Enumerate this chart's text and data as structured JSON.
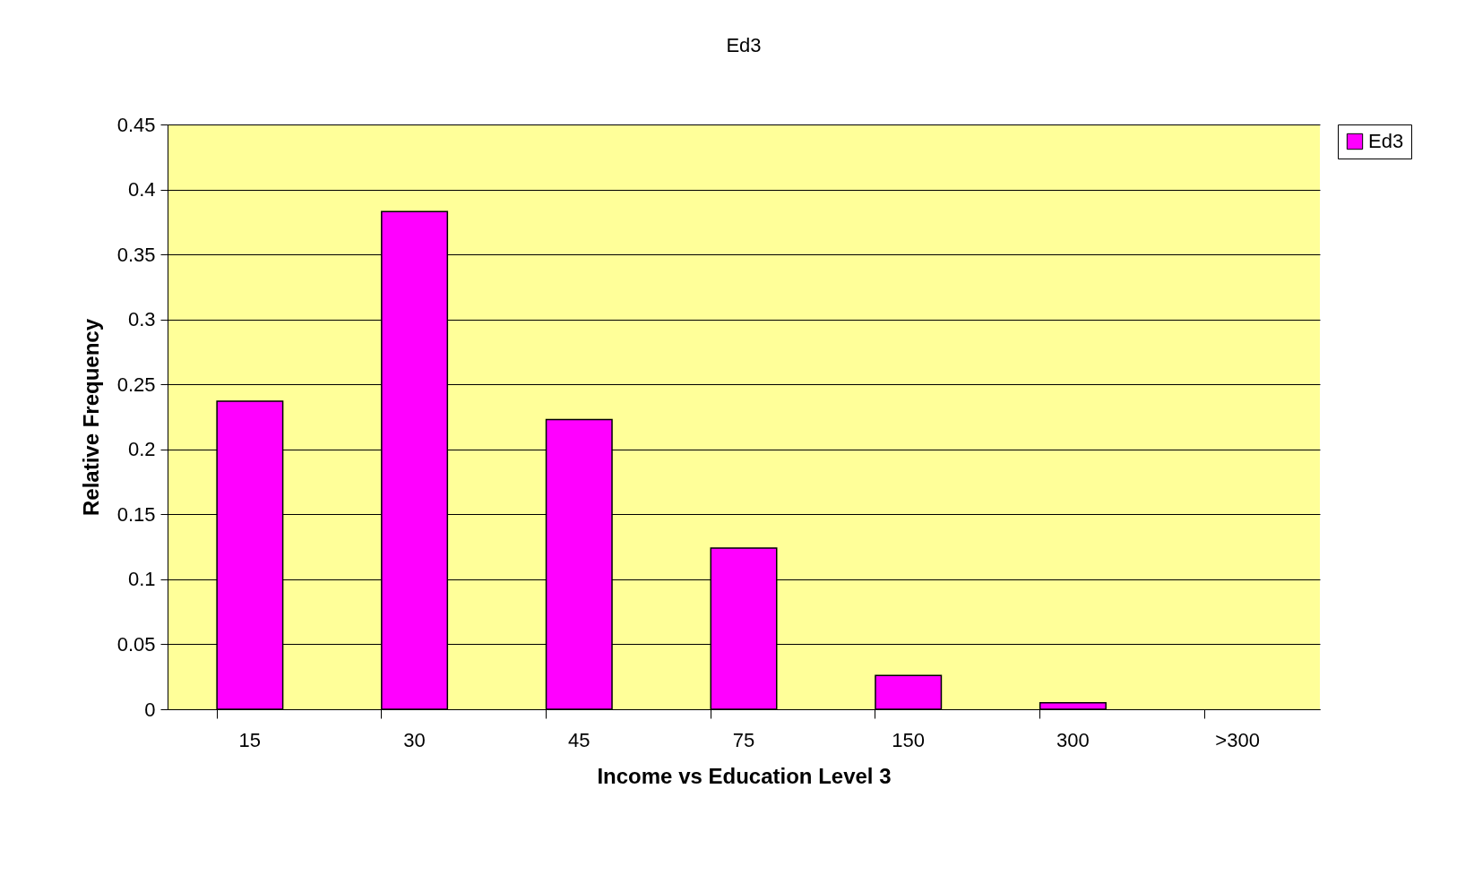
{
  "chart_data": {
    "type": "bar",
    "title": "Ed3",
    "xlabel": "Income vs Education Level 3",
    "ylabel": "Relative Frequency",
    "categories": [
      "15",
      "30",
      "45",
      "75",
      "150",
      "300",
      ">300"
    ],
    "series": [
      {
        "name": "Ed3",
        "color": "#ff00ff",
        "values": [
          0.237,
          0.383,
          0.223,
          0.124,
          0.026,
          0.005,
          0
        ]
      }
    ],
    "ylim": [
      0,
      0.45
    ],
    "yticks": [
      0,
      0.05,
      0.1,
      0.15,
      0.2,
      0.25,
      0.3,
      0.35,
      0.4,
      0.45
    ],
    "grid": "y",
    "legend": "right"
  }
}
